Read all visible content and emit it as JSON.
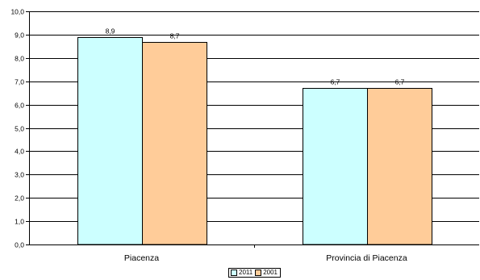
{
  "chart_data": {
    "type": "bar",
    "title": "",
    "xlabel": "",
    "ylabel": "",
    "categories": [
      "Piacenza",
      "Provincia di Piacenza"
    ],
    "series": [
      {
        "name": "2011",
        "values": [
          8.9,
          6.7
        ],
        "labels": [
          "8,9",
          "6,7"
        ],
        "color": "#ccffff"
      },
      {
        "name": "2001",
        "values": [
          8.7,
          6.7
        ],
        "labels": [
          "8,7",
          "6,7"
        ],
        "color": "#ffcc99"
      }
    ],
    "ylim": [
      0,
      10
    ],
    "yticks": [
      0,
      1,
      2,
      3,
      4,
      5,
      6,
      7,
      8,
      9,
      10
    ],
    "ytick_labels": [
      "0,0",
      "1,0",
      "2,0",
      "3,0",
      "4,0",
      "5,0",
      "6,0",
      "7,0",
      "8,0",
      "9,0",
      "10,0"
    ],
    "grid": true,
    "legend_position": "bottom-center"
  }
}
